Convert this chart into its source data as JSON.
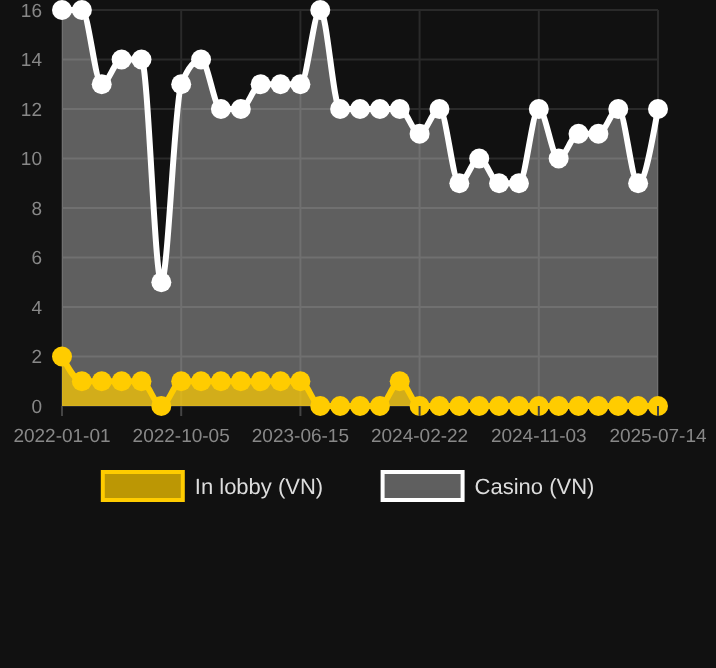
{
  "chart_data": {
    "type": "area",
    "categories": [
      "2022-01-01",
      null,
      null,
      null,
      null,
      null,
      "2022-10-05",
      null,
      null,
      null,
      null,
      null,
      "2023-06-15",
      null,
      null,
      null,
      null,
      null,
      "2024-02-22",
      null,
      null,
      null,
      null,
      null,
      "2024-11-03",
      null,
      null,
      null,
      null,
      null,
      "2025-07-14"
    ],
    "series": [
      {
        "name": "In lobby (VN)",
        "color": "#ffcc00",
        "values": [
          2,
          1,
          1,
          1,
          1,
          0,
          1,
          1,
          1,
          1,
          1,
          1,
          1,
          0,
          0,
          0,
          0,
          1,
          0,
          0,
          0,
          0,
          0,
          0,
          0,
          0,
          0,
          0,
          0,
          0,
          0
        ]
      },
      {
        "name": "Casino (VN)",
        "color": "#ffffff",
        "values": [
          16,
          16,
          13,
          14,
          14,
          5,
          13,
          14,
          12,
          12,
          13,
          13,
          13,
          16,
          12,
          12,
          12,
          12,
          11,
          12,
          9,
          10,
          9,
          9,
          12,
          10,
          11,
          11,
          12,
          9,
          12
        ]
      }
    ],
    "ylim": [
      0,
      16
    ],
    "yticks": [
      0,
      2,
      4,
      6,
      8,
      10,
      12,
      14,
      16
    ],
    "grid": true,
    "legend": "bottom",
    "marker": "circle",
    "line_style": "solid"
  }
}
